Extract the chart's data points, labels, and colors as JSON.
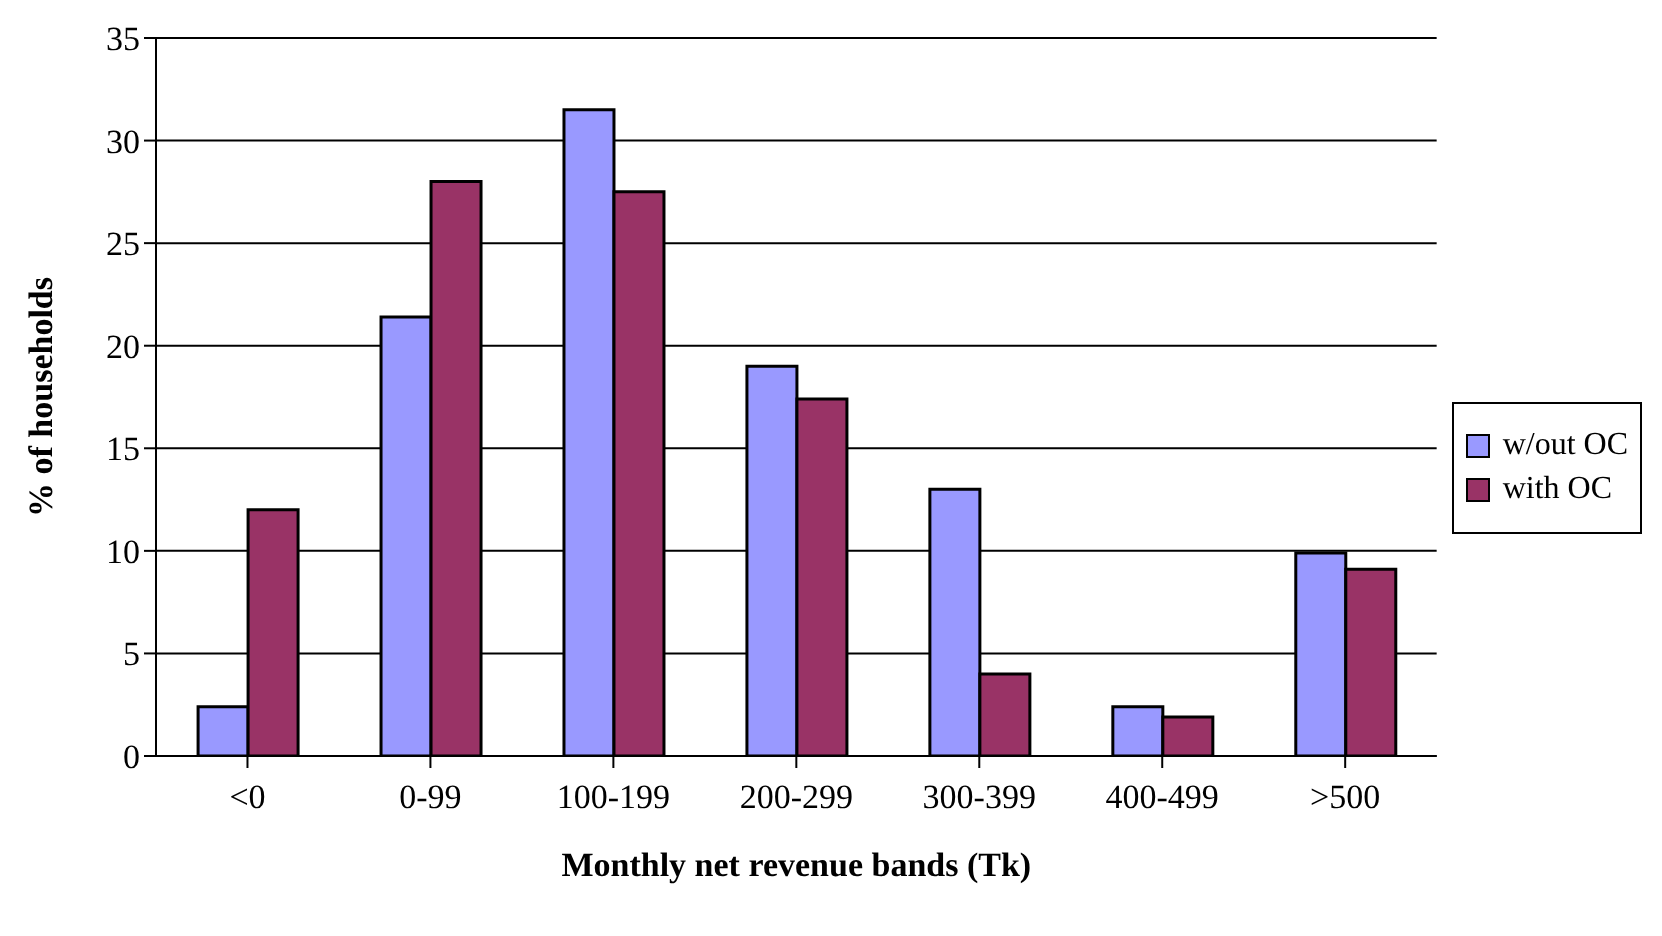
{
  "chart_data": {
    "type": "bar",
    "xlabel": "Monthly net revenue bands (Tk)",
    "ylabel": "% of households",
    "categories": [
      "<0",
      "0-99",
      "100-199",
      "200-299",
      "300-399",
      "400-499",
      ">500"
    ],
    "series": [
      {
        "name": "w/out OC",
        "color": "#9999ff",
        "values": [
          2.4,
          21.4,
          31.5,
          19.0,
          13.0,
          2.4,
          9.9
        ]
      },
      {
        "name": "with OC",
        "color": "#993366",
        "values": [
          12.0,
          28.0,
          27.5,
          17.4,
          4.0,
          1.9,
          9.1
        ]
      }
    ],
    "ylim": [
      0,
      35
    ],
    "yticks": [
      0,
      5,
      10,
      15,
      20,
      25,
      30,
      35
    ],
    "grid": "y",
    "legend": "right"
  }
}
